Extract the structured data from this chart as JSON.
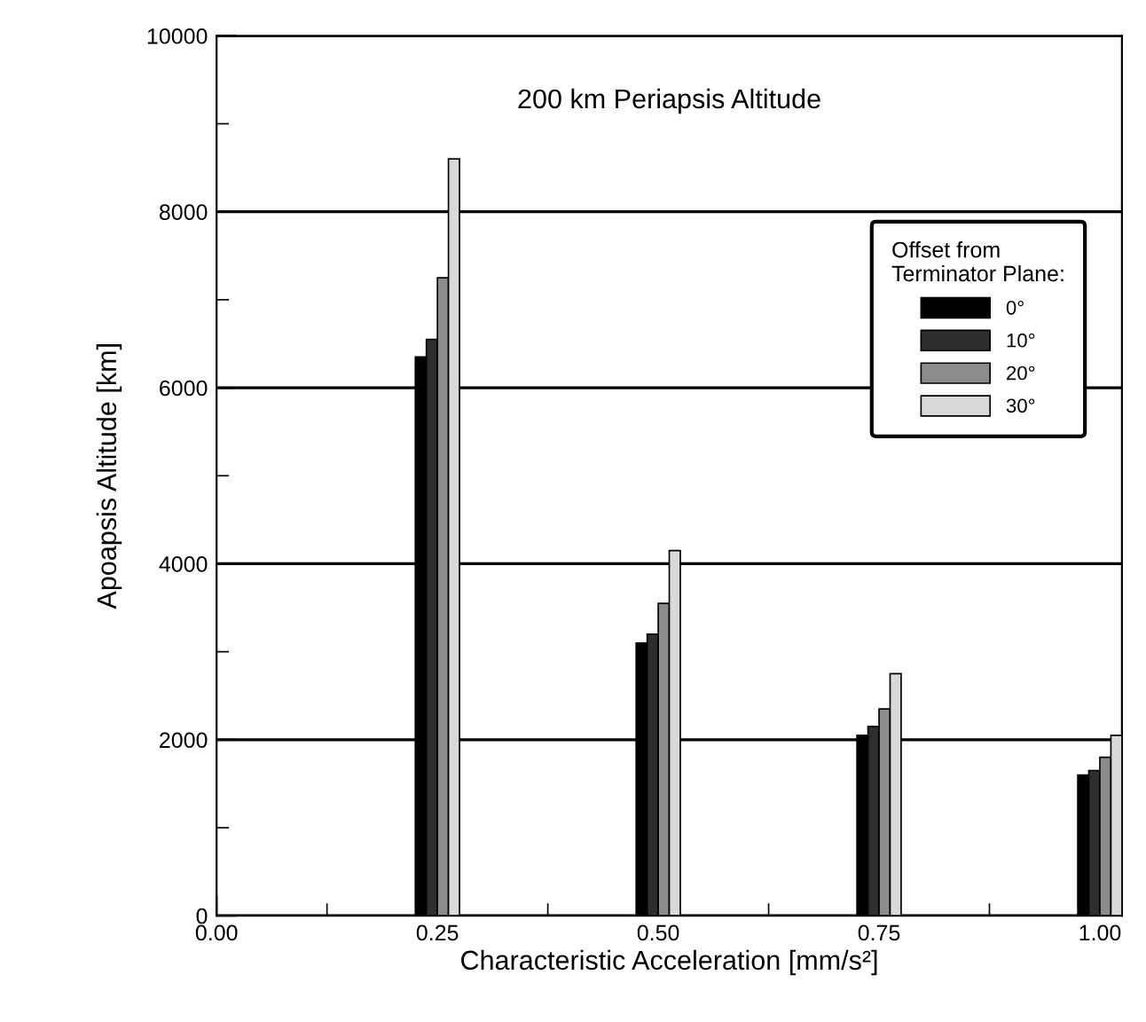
{
  "chart_data": {
    "type": "bar",
    "xlabel": "Characteristic Acceleration [mm/s²]",
    "ylabel": "Apoapsis Altitude [km]",
    "annotations": [
      "200 km Periapsis Altitude"
    ],
    "legend_title": "Offset from\nTerminator Plane:",
    "x": [
      0.25,
      0.5,
      0.75,
      1.0
    ],
    "series": [
      {
        "name": "0°",
        "color": "#000000",
        "values": [
          6350,
          3100,
          2050,
          1600
        ]
      },
      {
        "name": "10°",
        "color": "#2e2e2e",
        "values": [
          6550,
          3200,
          2150,
          1650
        ]
      },
      {
        "name": "20°",
        "color": "#8c8c8c",
        "values": [
          7250,
          3550,
          2350,
          1800
        ]
      },
      {
        "name": "30°",
        "color": "#d9d9d9",
        "values": [
          8600,
          4150,
          2750,
          2050
        ]
      }
    ],
    "xlim": [
      0,
      1.025
    ],
    "xticks": [
      {
        "value": 0,
        "label": "0.00"
      },
      {
        "value": 0.125,
        "label": null
      },
      {
        "value": 0.25,
        "label": "0.25"
      },
      {
        "value": 0.375,
        "label": null
      },
      {
        "value": 0.5,
        "label": "0.50"
      },
      {
        "value": 0.625,
        "label": null
      },
      {
        "value": 0.75,
        "label": "0.75"
      },
      {
        "value": 0.875,
        "label": null
      },
      {
        "value": 1.0,
        "label": "1.00"
      }
    ],
    "ylim": [
      0,
      10000
    ],
    "yticks": [
      0,
      {
        "value": 1000,
        "label": null
      },
      2000,
      {
        "value": 3000,
        "label": null
      },
      4000,
      {
        "value": 5000,
        "label": null
      },
      6000,
      {
        "value": 7000,
        "label": null
      },
      8000,
      {
        "value": 9000,
        "label": null
      },
      10000
    ],
    "grid": "y",
    "legend": "right"
  }
}
